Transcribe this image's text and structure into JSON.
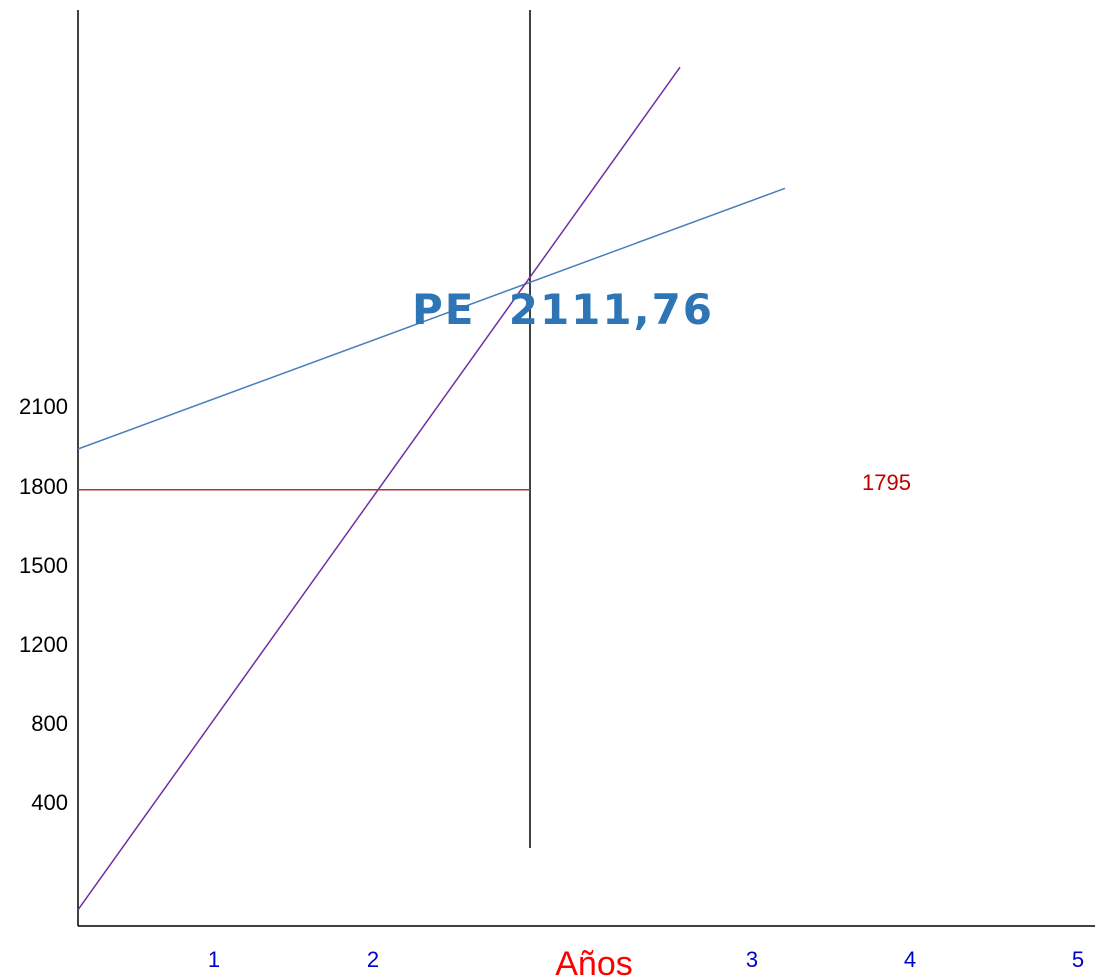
{
  "chart_data": {
    "type": "line",
    "title": "",
    "xlabel": "Años",
    "ylabel": "",
    "x_ticks": [
      "1",
      "2",
      "3",
      "4",
      "5"
    ],
    "y_ticks": [
      "400",
      "800",
      "1200",
      "1500",
      "1800",
      "2100"
    ],
    "series": [
      {
        "values": [
          1950,
          2940
        ],
        "color": "#4a7ebb"
      },
      {
        "values": [
          200,
          3400
        ],
        "color": "#7030a0"
      },
      {
        "values": [
          1795,
          1795
        ],
        "color": "#b03030"
      }
    ],
    "annotations": [
      {
        "text": "PE  2111,76",
        "color": "#2e75b6"
      },
      {
        "text": "1795",
        "color": "#c00000"
      }
    ],
    "colors": {
      "axis": "#000000",
      "x_tick_text": "#0000cc",
      "x_label_text": "#ff0000",
      "y_tick_text": "#000000"
    },
    "grid": false
  }
}
